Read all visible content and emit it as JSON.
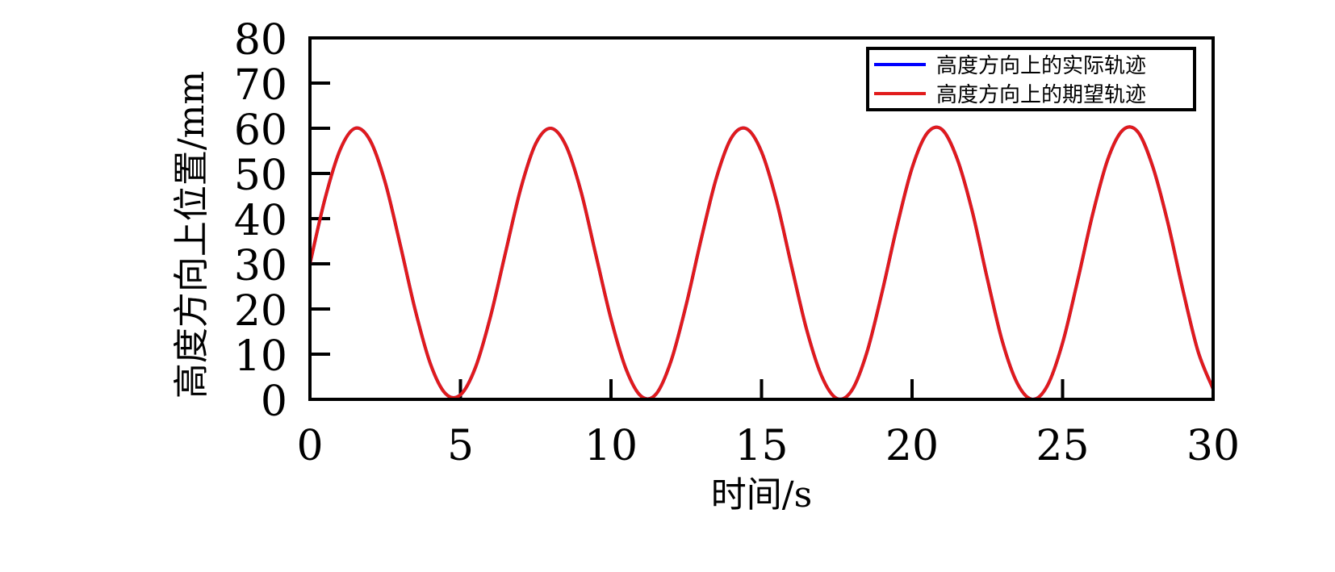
{
  "chart_data": {
    "type": "line",
    "xlabel": "时间/s",
    "ylabel": "高度方向上位置/mm",
    "xlim": [
      0,
      30
    ],
    "ylim": [
      0,
      80
    ],
    "xticks": [
      0,
      5,
      10,
      15,
      20,
      25,
      30
    ],
    "yticks": [
      0,
      10,
      20,
      30,
      40,
      50,
      60,
      70,
      80
    ],
    "x_tick_labels": [
      "0",
      "5",
      "10",
      "15",
      "20",
      "25",
      "30"
    ],
    "y_tick_labels": [
      "0",
      "10",
      "20",
      "30",
      "40",
      "50",
      "60",
      "70",
      "80"
    ],
    "grid": false,
    "legend_position": "top-right",
    "series": [
      {
        "name": "高度方向上的实际轨迹",
        "color": "#0000ff",
        "x": [
          0,
          0.5,
          1,
          1.5,
          2,
          2.5,
          3,
          3.5,
          4,
          4.5,
          5,
          5.5,
          6,
          6.5,
          7,
          7.5,
          8,
          8.5,
          9,
          9.5,
          10,
          10.5,
          11,
          11.5,
          12,
          12.5,
          13,
          13.5,
          14,
          14.5,
          15,
          15.5,
          16,
          16.5,
          17,
          17.5,
          18,
          18.5,
          19,
          19.5,
          20,
          20.5,
          21,
          21.5,
          22,
          22.5,
          23,
          23.5,
          24,
          24.5,
          25,
          25.5,
          26,
          26.5,
          27,
          27.5,
          28,
          28.5,
          29,
          29.5,
          30
        ],
        "y": [
          30,
          44.4,
          55.2,
          60,
          57.3,
          48.0,
          34.2,
          19.7,
          7.9,
          1.3,
          1.0,
          7.1,
          18.4,
          32.6,
          46.6,
          56.6,
          60.0,
          56.2,
          46.1,
          31.9,
          17.8,
          6.7,
          0.7,
          1.2,
          8.6,
          21.0,
          35.6,
          49.0,
          57.9,
          59.9,
          54.8,
          43.9,
          29.4,
          15.4,
          5.1,
          0.2,
          2.0,
          10.4,
          23.6,
          38.3,
          51.2,
          58.9,
          59.7,
          53.2,
          41.6,
          26.7,
          12.8,
          3.5,
          0.0,
          3.1,
          12.5,
          26.3,
          41.0,
          53.1,
          59.6,
          59.2,
          51.4,
          39.0,
          24.1,
          10.6,
          2.3
        ]
      },
      {
        "name": "高度方向上的期望轨迹",
        "color": "#e11b1b",
        "x": [
          0,
          0.5,
          1,
          1.5,
          2,
          2.5,
          3,
          3.5,
          4,
          4.5,
          5,
          5.5,
          6,
          6.5,
          7,
          7.5,
          8,
          8.5,
          9,
          9.5,
          10,
          10.5,
          11,
          11.5,
          12,
          12.5,
          13,
          13.5,
          14,
          14.5,
          15,
          15.5,
          16,
          16.5,
          17,
          17.5,
          18,
          18.5,
          19,
          19.5,
          20,
          20.5,
          21,
          21.5,
          22,
          22.5,
          23,
          23.5,
          24,
          24.5,
          25,
          25.5,
          26,
          26.5,
          27,
          27.5,
          28,
          28.5,
          29,
          29.5,
          30
        ],
        "y": [
          30,
          44.4,
          55.2,
          60,
          57.3,
          48.0,
          34.2,
          19.7,
          7.9,
          1.3,
          1.0,
          7.1,
          18.4,
          32.6,
          46.6,
          56.6,
          60.0,
          56.2,
          46.1,
          31.9,
          17.8,
          6.7,
          0.7,
          1.2,
          8.6,
          21.0,
          35.6,
          49.0,
          57.9,
          59.9,
          54.8,
          43.9,
          29.4,
          15.4,
          5.1,
          0.2,
          2.0,
          10.4,
          23.6,
          38.3,
          51.2,
          58.9,
          59.7,
          53.2,
          41.6,
          26.7,
          12.8,
          3.5,
          0.0,
          3.1,
          12.5,
          26.3,
          41.0,
          53.1,
          59.6,
          59.2,
          51.4,
          39.0,
          24.1,
          10.6,
          2.3
        ]
      }
    ]
  }
}
